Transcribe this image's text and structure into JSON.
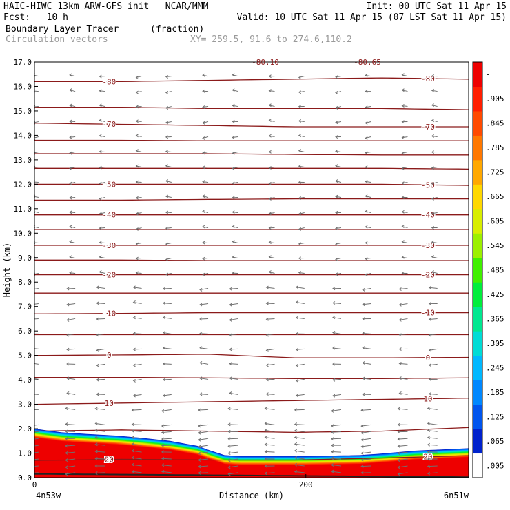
{
  "header": {
    "line1_left": "HAIC-HIWC 13km ARW-GFS init   NCAR/MMM",
    "line1_right": "Init: 00 UTC Sat 11 Apr 15",
    "line2_left": "Fcst:   10 h",
    "line2_right": "Valid: 10 UTC Sat 11 Apr 15 (07 LST Sat 11 Apr 15)",
    "line3_left": "Boundary Layer Tracer",
    "line3_mid": "(fraction)",
    "line4_left": "Circulation vectors",
    "line4_mid": "XY= 259.5, 91.6 to 274.6,110.2"
  },
  "chart_data": {
    "type": "heatmap",
    "title": "Boundary Layer Tracer",
    "ylabel": "Height (km)",
    "xlabel": "Distance (km)",
    "ylim": [
      0,
      17
    ],
    "xlim": [
      0,
      320
    ],
    "y_ticks": [
      "0.0",
      "1.0",
      "2.0",
      "3.0",
      "4.0",
      "5.0",
      "6.0",
      "7.0",
      "8.0",
      "9.0",
      "10.0",
      "11.0",
      "12.0",
      "13.0",
      "14.0",
      "15.0",
      "16.0",
      "17.0"
    ],
    "x_ticks": [
      {
        "value": 0,
        "label": "0"
      },
      {
        "value": 200,
        "label": "200"
      }
    ],
    "x_end_labels": {
      "left": "4n53w",
      "right": "6n51w"
    },
    "colorbar": {
      "labels": [
        ".005",
        ".065",
        ".125",
        ".185",
        ".245",
        ".305",
        ".365",
        ".425",
        ".485",
        ".545",
        ".605",
        ".665",
        ".725",
        ".785",
        ".845",
        ".905",
        "-"
      ],
      "colors": [
        "#ffffff",
        "#0022cc",
        "#0055ee",
        "#0088ff",
        "#00b8ff",
        "#00dcd6",
        "#00e890",
        "#00ee3c",
        "#40f000",
        "#9cf000",
        "#d8ee00",
        "#ffd800",
        "#ffa800",
        "#ff7800",
        "#ff4a00",
        "#ff1e00",
        "#ee0000"
      ]
    },
    "tracer_top_km": {
      "distance": [
        0,
        20,
        40,
        60,
        80,
        100,
        110,
        120,
        130,
        140,
        150,
        160,
        180,
        200,
        220,
        240,
        260,
        280,
        300,
        320
      ],
      "height": [
        2.0,
        1.85,
        1.78,
        1.72,
        1.62,
        1.5,
        1.4,
        1.3,
        1.1,
        0.92,
        0.88,
        0.88,
        0.88,
        0.88,
        0.9,
        0.92,
        1.0,
        1.1,
        1.15,
        1.2
      ]
    },
    "temperature_contours": [
      {
        "label": "-80",
        "height": [
          16.2,
          16.2,
          16.25,
          16.3,
          16.35,
          16.3
        ]
      },
      {
        "label": "",
        "height": [
          15.15,
          15.15,
          15.1,
          15.1,
          15.1,
          15.05
        ]
      },
      {
        "label": "-70",
        "height": [
          14.5,
          14.45,
          14.4,
          14.35,
          14.35,
          14.35
        ]
      },
      {
        "label": "",
        "height": [
          13.8,
          13.8,
          13.78,
          13.78,
          13.78,
          13.78
        ]
      },
      {
        "label": "",
        "height": [
          13.25,
          13.25,
          13.25,
          13.22,
          13.2,
          13.2
        ]
      },
      {
        "label": "",
        "height": [
          12.65,
          12.65,
          12.65,
          12.65,
          12.65,
          12.62
        ]
      },
      {
        "label": "-50",
        "height": [
          12.0,
          12.0,
          12.0,
          12.0,
          12.0,
          11.95
        ]
      },
      {
        "label": "",
        "height": [
          11.35,
          11.35,
          11.38,
          11.4,
          11.4,
          11.4
        ]
      },
      {
        "label": "-40",
        "height": [
          10.75,
          10.75,
          10.75,
          10.75,
          10.75,
          10.75
        ]
      },
      {
        "label": "",
        "height": [
          10.15,
          10.15,
          10.15,
          10.15,
          10.15,
          10.15
        ]
      },
      {
        "label": "-30",
        "height": [
          9.5,
          9.5,
          9.5,
          9.5,
          9.5,
          9.5
        ]
      },
      {
        "label": "",
        "height": [
          8.9,
          8.9,
          8.88,
          8.88,
          8.88,
          8.88
        ]
      },
      {
        "label": "-20",
        "height": [
          8.3,
          8.3,
          8.3,
          8.3,
          8.3,
          8.3
        ]
      },
      {
        "label": "",
        "height": [
          7.55,
          7.55,
          7.55,
          7.55,
          7.55,
          7.55
        ]
      },
      {
        "label": "-10",
        "height": [
          6.7,
          6.72,
          6.75,
          6.75,
          6.75,
          6.75
        ]
      },
      {
        "label": "",
        "height": [
          5.85,
          5.85,
          5.85,
          5.85,
          5.85,
          5.85
        ]
      },
      {
        "label": "0",
        "height": [
          5.0,
          5.02,
          5.05,
          4.9,
          4.9,
          4.92
        ]
      },
      {
        "label": "",
        "height": [
          4.1,
          4.1,
          4.08,
          4.05,
          4.05,
          4.08
        ]
      },
      {
        "label": "10",
        "height": [
          3.0,
          3.05,
          3.1,
          3.15,
          3.2,
          3.25
        ]
      },
      {
        "label": "",
        "height": [
          1.9,
          1.95,
          1.9,
          1.85,
          1.9,
          2.05
        ]
      },
      {
        "label": "20",
        "height": [
          0.7,
          0.75,
          0.72,
          0.72,
          0.8,
          0.9
        ]
      }
    ],
    "top_labels": [
      "-80.10",
      "-80.65"
    ],
    "vector_color": "#707070",
    "contour_color": "#8b1a1a"
  }
}
